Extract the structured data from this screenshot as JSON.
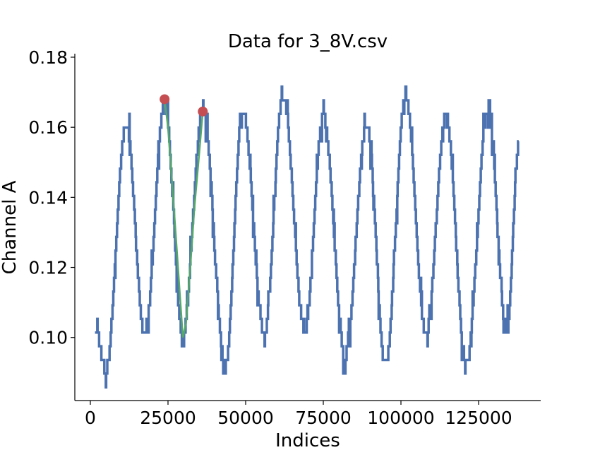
{
  "chart_data": {
    "type": "line",
    "title": "Data for 3_8V.csv",
    "xlabel": "Indices",
    "ylabel": "Channel A",
    "xlim": [
      -5000,
      145000
    ],
    "ylim": [
      0.082,
      0.181
    ],
    "x_ticks": [
      0,
      25000,
      50000,
      75000,
      100000,
      125000
    ],
    "x_tick_labels": [
      "0",
      "25000",
      "50000",
      "75000",
      "100000",
      "125000"
    ],
    "y_ticks": [
      0.1,
      0.12,
      0.14,
      0.16,
      0.18
    ],
    "y_tick_labels": [
      "0.10",
      "0.12",
      "0.14",
      "0.16",
      "0.18"
    ],
    "grid": false,
    "series": [
      {
        "color": "#4c72b0",
        "signal": {
          "x_start": 1500,
          "x_end": 138000,
          "min_anchors": [
            [
              5000,
              0.091
            ],
            [
              17500,
              0.101
            ],
            [
              29700,
              0.101
            ],
            [
              43500,
              0.092
            ],
            [
              56000,
              0.101
            ],
            [
              69000,
              0.102
            ],
            [
              82000,
              0.095
            ],
            [
              95000,
              0.092
            ],
            [
              108000,
              0.101
            ],
            [
              121000,
              0.092
            ],
            [
              134000,
              0.101
            ]
          ],
          "max_anchors": [
            [
              11500,
              0.161
            ],
            [
              23900,
              0.167
            ],
            [
              36200,
              0.165
            ],
            [
              49000,
              0.165
            ],
            [
              62000,
              0.169
            ],
            [
              75000,
              0.163
            ],
            [
              89000,
              0.161
            ],
            [
              101500,
              0.169
            ],
            [
              114500,
              0.163
            ],
            [
              128000,
              0.165
            ]
          ],
          "end_value": 0.155,
          "quantization_step": 0.0039,
          "noise_amplitude": 0.006
        }
      },
      {
        "color": "#55a868",
        "x": [
          23900,
          25000,
          26500,
          28000,
          29000,
          29800,
          30800,
          32000,
          33500,
          35000,
          36200
        ],
        "y": [
          0.168,
          0.16,
          0.142,
          0.123,
          0.11,
          0.1,
          0.104,
          0.118,
          0.137,
          0.152,
          0.1645
        ]
      }
    ],
    "markers": {
      "color": "#c44e52",
      "x": [
        23900,
        36200
      ],
      "y": [
        0.168,
        0.1645
      ]
    }
  }
}
